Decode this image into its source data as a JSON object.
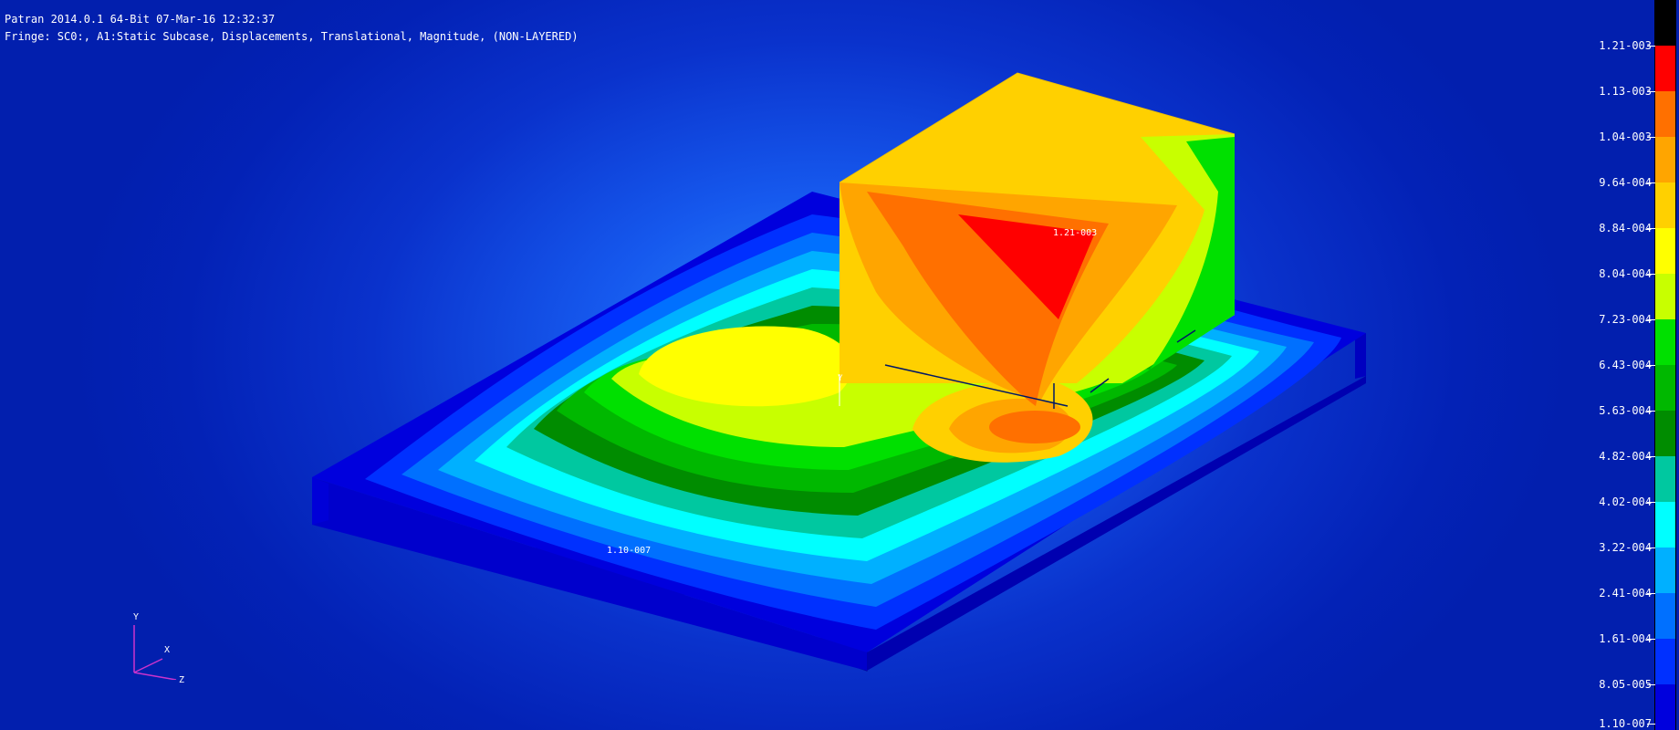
{
  "header": {
    "title": "Patran 2014.0.1 64-Bit 07-Mar-16 12:32:37",
    "fringe_description": "Fringe: SC0:, A1:Static Subcase, Displacements, Translational, Magnitude, (NON-LAYERED)"
  },
  "model": {
    "max_label": "1.21-003",
    "min_label": "1.10-007",
    "node_marker_label": "Y"
  },
  "axis_triad": {
    "y_label": "Y",
    "x_label": "X",
    "z_label": "Z",
    "color": "#cc33cc"
  },
  "legend": {
    "labels": [
      "1.21-003",
      "1.13-003",
      "1.04-003",
      "9.64-004",
      "8.84-004",
      "8.04-004",
      "7.23-004",
      "6.43-004",
      "5.63-004",
      "4.82-004",
      "4.02-004",
      "3.22-004",
      "2.41-004",
      "1.61-004",
      "8.05-005",
      "1.10-007"
    ],
    "colors_top_to_bottom": [
      "#000000",
      "#ff0000",
      "#ff7000",
      "#ffa500",
      "#ffd000",
      "#ffff00",
      "#c8ff00",
      "#00e000",
      "#00b800",
      "#008c00",
      "#00c8a0",
      "#00ffff",
      "#00b0ff",
      "#0070ff",
      "#0030ff",
      "#0000dd"
    ]
  },
  "fringe_palette": {
    "c0": "#0000dd",
    "c1": "#0030ff",
    "c2": "#0070ff",
    "c3": "#00b0ff",
    "c4": "#00ffff",
    "c5": "#00c8a0",
    "c6": "#008c00",
    "c7": "#00b800",
    "c8": "#00e000",
    "c9": "#c8ff00",
    "c10": "#ffff00",
    "c11": "#ffd000",
    "c12": "#ffa500",
    "c13": "#ff7000",
    "c14": "#ff0000",
    "c15": "#000000"
  }
}
